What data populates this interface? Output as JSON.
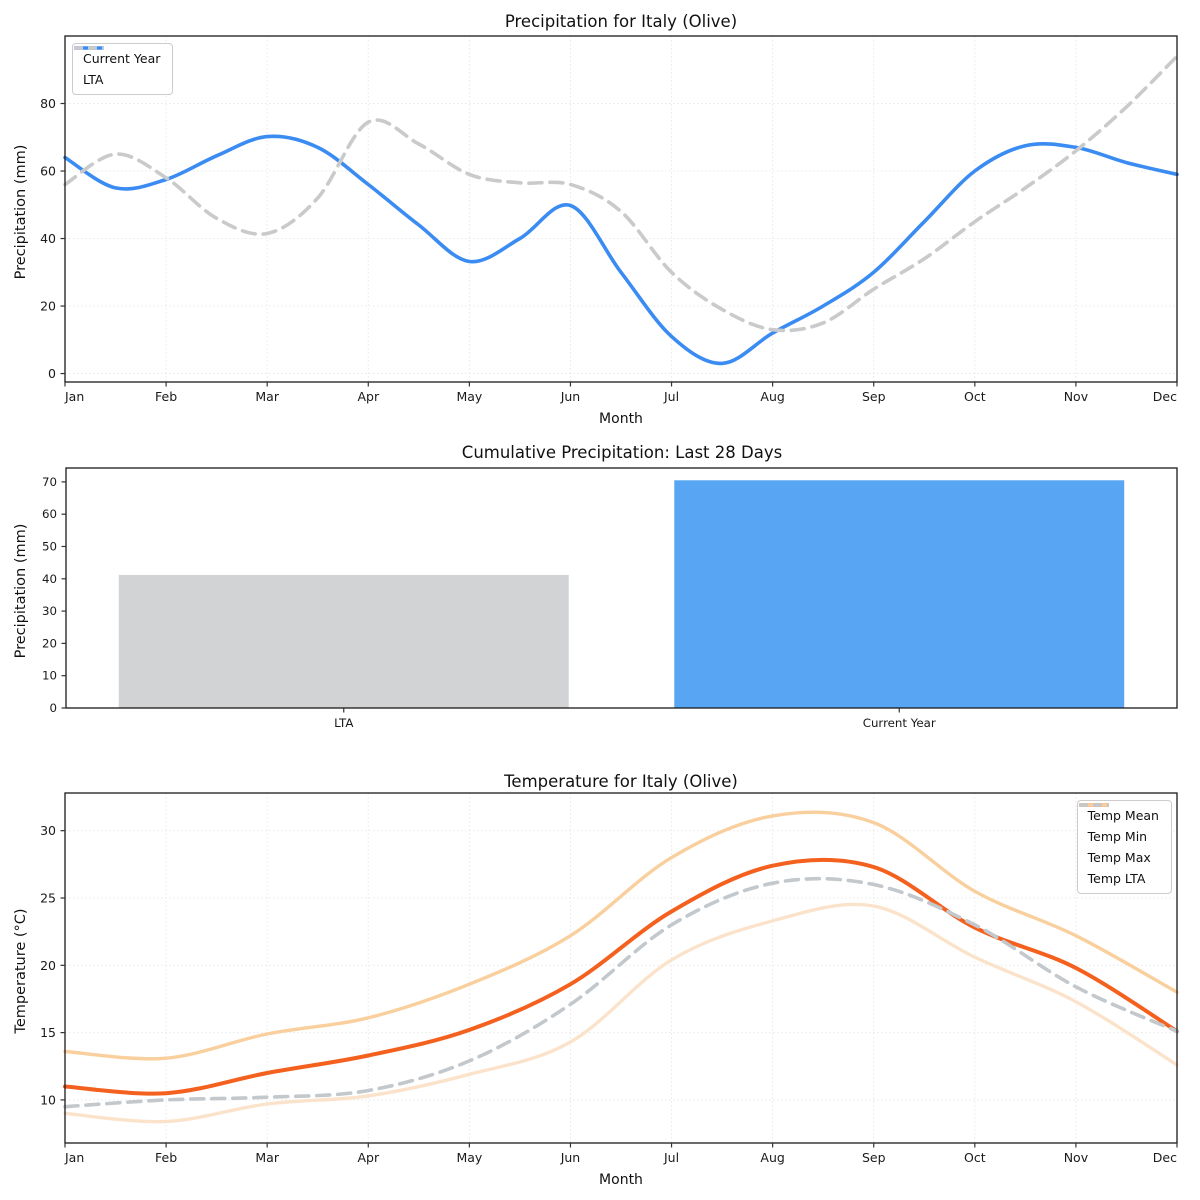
{
  "page": {
    "background": "#ffffff"
  },
  "months": [
    "Jan",
    "Feb",
    "Mar",
    "Apr",
    "May",
    "Jun",
    "Jul",
    "Aug",
    "Sep",
    "Oct",
    "Nov",
    "Dec"
  ],
  "colors": {
    "current_year_line": "#3a8bf2",
    "lta_line": "#c9cacb",
    "bar_lta": "#d2d3d5",
    "bar_current": "#58a5f3",
    "temp_mean": "#f4601e",
    "temp_min": "#fbe3cb",
    "temp_max": "#f9cf9d",
    "temp_lta": "#c3c8cc",
    "grid": "#e8e8eb",
    "spine": "#1a1a1a"
  },
  "chart_data": [
    {
      "type": "line",
      "title": "Precipitation for Italy (Olive)",
      "xlabel": "Month",
      "ylabel": "Precipitation (mm)",
      "x_tick_labels": [
        "Jan",
        "Feb",
        "Mar",
        "Apr",
        "May",
        "Jun",
        "Jul",
        "Aug",
        "Sep",
        "Oct",
        "Nov",
        "Dec"
      ],
      "yticks": [
        0,
        20,
        40,
        60,
        80
      ],
      "ylim": [
        -2.5,
        100
      ],
      "grid": true,
      "legend_position": "top-left",
      "series": [
        {
          "name": "Current Year",
          "color": "#3a8bf2",
          "style": "solid",
          "width": 3.6,
          "x": [
            0,
            0.5,
            1,
            1.5,
            2,
            2.5,
            3,
            3.5,
            4,
            4.5,
            5,
            5.5,
            6,
            6.5,
            7,
            7.5,
            8,
            8.5,
            9,
            9.5,
            10,
            10.5,
            11
          ],
          "values": [
            64,
            55,
            57.5,
            64.5,
            70.2,
            67,
            56,
            44,
            33.2,
            40,
            49.8,
            30,
            11,
            3,
            12,
            20,
            30,
            45,
            60,
            67.5,
            67,
            62.5,
            59
          ]
        },
        {
          "name": "LTA",
          "color": "#c9cacb",
          "style": "dashed",
          "width": 3.6,
          "x": [
            0,
            0.5,
            1,
            1.5,
            2,
            2.5,
            3,
            3.5,
            4,
            4.5,
            5,
            5.5,
            6,
            6.5,
            7,
            7.5,
            8,
            8.5,
            9,
            9.5,
            10,
            10.5,
            11
          ],
          "values": [
            56,
            65,
            58,
            46,
            41.5,
            52,
            74.5,
            68,
            59,
            56.5,
            56,
            48,
            30,
            19,
            13,
            15,
            25,
            34,
            45,
            55,
            66,
            79,
            94
          ]
        }
      ]
    },
    {
      "type": "bar",
      "title": "Cumulative Precipitation: Last 28 Days",
      "ylabel": "Precipitation (mm)",
      "categories": [
        "LTA",
        "Current Year"
      ],
      "values": [
        41.2,
        70.5
      ],
      "bar_colors": [
        "#d2d3d5",
        "#58a5f3"
      ],
      "yticks": [
        0,
        10,
        20,
        30,
        40,
        50,
        60,
        70
      ],
      "ylim": [
        0,
        74.3
      ],
      "grid": false
    },
    {
      "type": "line",
      "title": "Temperature for Italy (Olive)",
      "xlabel": "Month",
      "ylabel": "Temperature (°C)",
      "x_tick_labels": [
        "Jan",
        "Feb",
        "Mar",
        "Apr",
        "May",
        "Jun",
        "Jul",
        "Aug",
        "Sep",
        "Oct",
        "Nov",
        "Dec"
      ],
      "yticks": [
        10,
        15,
        20,
        25,
        30
      ],
      "ylim": [
        6.8,
        32.8
      ],
      "grid": true,
      "legend_position": "top-right",
      "series": [
        {
          "name": "Temp Mean",
          "color": "#f4601e",
          "style": "solid",
          "width": 4,
          "x": [
            0,
            1,
            2,
            3,
            4,
            5,
            6,
            7,
            8,
            9,
            10,
            11
          ],
          "values": [
            11.0,
            10.5,
            12.0,
            13.3,
            15.2,
            18.6,
            24.0,
            27.4,
            27.3,
            22.8,
            19.8,
            15.1
          ]
        },
        {
          "name": "Temp Min",
          "color": "#fbe3cb",
          "style": "solid",
          "width": 3.4,
          "x": [
            0,
            1,
            2,
            3,
            4,
            5,
            6,
            7,
            8,
            9,
            10,
            11
          ],
          "values": [
            9.0,
            8.4,
            9.7,
            10.3,
            11.9,
            14.3,
            20.4,
            23.3,
            24.4,
            20.6,
            17.3,
            12.6
          ]
        },
        {
          "name": "Temp Max",
          "color": "#f9cf9d",
          "style": "solid",
          "width": 3.4,
          "x": [
            0,
            1,
            2,
            3,
            4,
            5,
            6,
            7,
            8,
            9,
            10,
            11
          ],
          "values": [
            13.6,
            13.1,
            14.9,
            16.1,
            18.6,
            22.2,
            28.0,
            31.1,
            30.6,
            25.5,
            22.2,
            18.0
          ]
        },
        {
          "name": "Temp LTA",
          "color": "#c3c8cc",
          "style": "dashed",
          "width": 3.6,
          "x": [
            0,
            1,
            2,
            3,
            4,
            5,
            6,
            7,
            8,
            9,
            10,
            11
          ],
          "values": [
            9.5,
            10.0,
            10.2,
            10.7,
            12.9,
            17.1,
            23.0,
            26.1,
            26.0,
            23.0,
            18.4,
            15.1
          ]
        }
      ]
    }
  ]
}
